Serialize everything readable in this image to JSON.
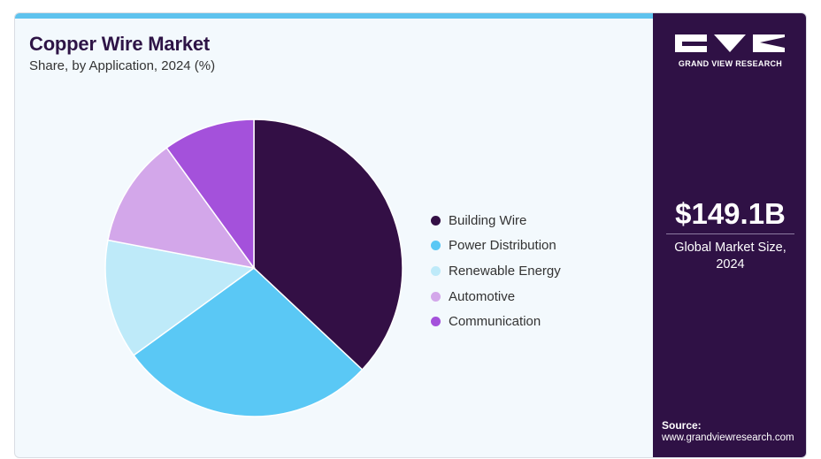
{
  "header": {
    "title": "Copper Wire Market",
    "subtitle": "Share, by Application, 2024 (%)"
  },
  "chart_data": {
    "type": "pie",
    "categories": [
      "Building Wire",
      "Power Distribution",
      "Renewable Energy",
      "Automotive",
      "Communication"
    ],
    "values": [
      37,
      28,
      13,
      12,
      10
    ],
    "colors": [
      "#330f45",
      "#5ac8f5",
      "#beeaf9",
      "#d3a7ea",
      "#a451db"
    ],
    "legend_position": "right",
    "title": "Copper Wire Market"
  },
  "sidebar": {
    "brand": "GRAND VIEW RESEARCH",
    "market_value": "$149.1B",
    "market_value_label": "Global Market Size, 2024",
    "source_label": "Source:",
    "source_url": "www.grandviewresearch.com"
  }
}
